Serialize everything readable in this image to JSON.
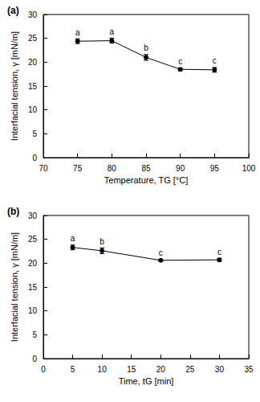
{
  "chart_data": [
    {
      "type": "line",
      "title": "(a)",
      "x_label": "Temperature, TG [°C]",
      "y_label": "Interfacial tension, γ [mN/m]",
      "x": [
        75,
        80,
        85,
        90,
        95
      ],
      "values": [
        24.4,
        24.5,
        21.0,
        18.5,
        18.4
      ],
      "errors": [
        0.5,
        0.5,
        0.6,
        0.3,
        0.5
      ],
      "annotations": [
        "a",
        "a",
        "b",
        "c",
        "c"
      ],
      "color": "#000000",
      "marker": "circle",
      "line_style": "solid",
      "xlim": [
        70,
        100
      ],
      "xticks": [
        70,
        75,
        80,
        85,
        90,
        95,
        100
      ],
      "ylim": [
        0,
        30
      ],
      "yticks": [
        0,
        5,
        10,
        15,
        20,
        25,
        30
      ],
      "grid": false
    },
    {
      "type": "line",
      "title": "(b)",
      "x_label": "Time, tG [min]",
      "y_label": "Interfacial tension, γ [mN/m]",
      "x": [
        5,
        10,
        20,
        30
      ],
      "values": [
        23.3,
        22.6,
        20.6,
        20.7
      ],
      "errors": [
        0.5,
        0.6,
        0.2,
        0.3
      ],
      "annotations": [
        "a",
        "b",
        "c",
        "c"
      ],
      "color": "#000000",
      "marker": "circle",
      "line_style": "solid",
      "xlim": [
        0,
        35
      ],
      "xticks": [
        0,
        5,
        10,
        15,
        20,
        25,
        30,
        35
      ],
      "ylim": [
        0,
        30
      ],
      "yticks": [
        0,
        5,
        10,
        15,
        20,
        25,
        30
      ],
      "grid": false
    }
  ]
}
